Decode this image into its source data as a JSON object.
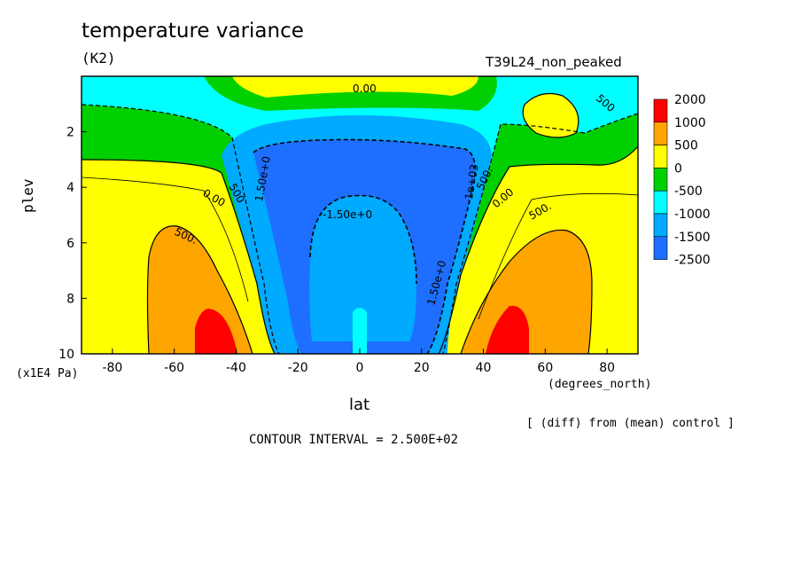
{
  "chart_data": {
    "type": "heatmap",
    "title": "temperature variance",
    "units": "(K2)",
    "experiment": "T39L24_non_peaked",
    "ylabel": "plev",
    "yunit": "(x1E4 Pa)",
    "xlabel": "lat",
    "xunit": "(degrees_north)",
    "note": "[ (diff) from (mean) control ]",
    "contour_interval": "CONTOUR INTERVAL = 2.500E+02",
    "xlim": [
      -90,
      90
    ],
    "ylim": [
      10,
      0
    ],
    "x_ticks": [
      "-80",
      "-60",
      "-40",
      "-20",
      "0",
      "20",
      "40",
      "60",
      "80"
    ],
    "y_ticks": [
      "2",
      "4",
      "6",
      "8",
      "10"
    ],
    "legend": {
      "labels": [
        "2000",
        "1000",
        "500",
        "0",
        "-500",
        "-1000",
        "-1500",
        "-2500"
      ],
      "colors": [
        "#ff0000",
        "#ffa500",
        "#ffff00",
        "#00d000",
        "#00ffff",
        "#00aaff",
        "#1e6eff"
      ]
    },
    "contour_labels": [
      "0.00",
      "500",
      "1.50e+0",
      "-1.50e+0",
      "0.00",
      "500.",
      "1.50e+0",
      "-1e+03",
      "500.",
      "0.00",
      "500.",
      "500"
    ],
    "colors": {
      "red": "#ff0000",
      "orange": "#ffa500",
      "yellow": "#ffff00",
      "green": "#00d000",
      "cyan": "#00ffff",
      "skyblue": "#00aaff",
      "blue": "#1e6eff"
    }
  }
}
